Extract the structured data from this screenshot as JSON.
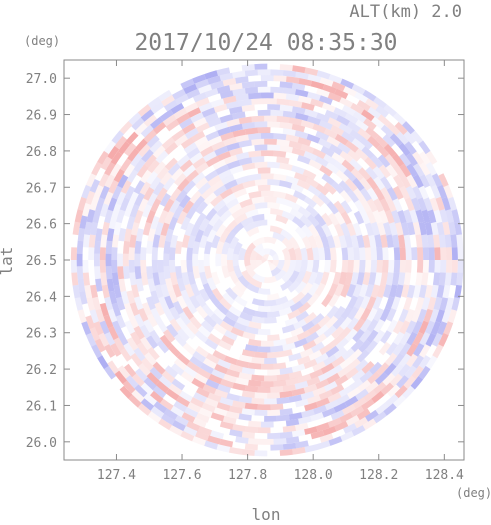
{
  "header": {
    "alt_label": "ALT(km) 2.0",
    "timestamp": "2017/10/24 08:35:30"
  },
  "chart_data": {
    "type": "heatmap",
    "title": "2017/10/24 08:35:30",
    "subtitle": "ALT(km) 2.0",
    "xlabel": "lon",
    "ylabel": "lat",
    "x_unit": "(deg)",
    "y_unit": "(deg)",
    "xlim": [
      127.24,
      128.46
    ],
    "ylim": [
      25.95,
      27.05
    ],
    "x_ticks": [
      127.4,
      127.6,
      127.8,
      128.0,
      128.2,
      128.4
    ],
    "y_ticks": [
      26.0,
      26.1,
      26.2,
      26.3,
      26.4,
      26.5,
      26.6,
      26.7,
      26.8,
      26.9,
      27.0
    ],
    "x_tick_labels": [
      "127.4",
      "127.6",
      "127.8",
      "128.0",
      "128.2",
      "128.4"
    ],
    "y_tick_labels": [
      "26.0",
      "26.1",
      "26.2",
      "26.3",
      "26.4",
      "26.5",
      "26.6",
      "26.7",
      "26.8",
      "26.9",
      "27.0"
    ],
    "center": {
      "lon": 127.86,
      "lat": 26.5
    },
    "range_radius_deg_lat": 0.54,
    "colormap": {
      "positive": "#f4a3a3",
      "negative": "#a9a9f2",
      "zero": "#ffffff"
    },
    "grid": false
  }
}
